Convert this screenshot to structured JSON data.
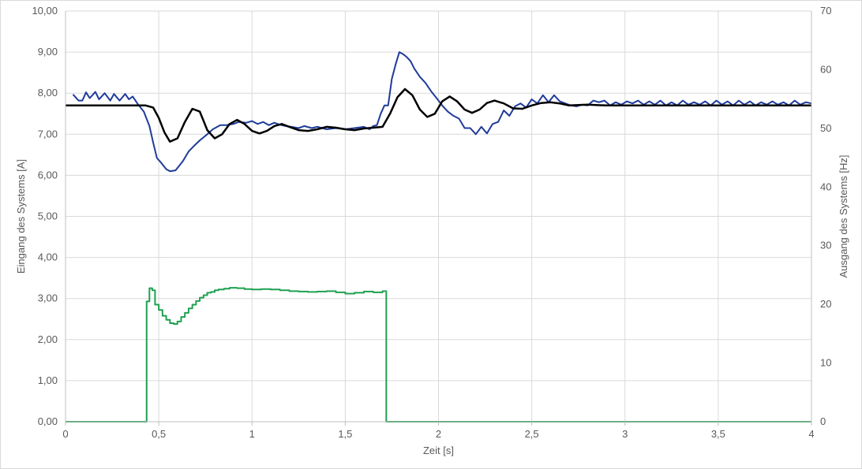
{
  "chart_data": {
    "type": "line",
    "title": "",
    "xlabel": "Zeit [s]",
    "ylabel_left": "Eingang des Systems [A]",
    "ylabel_right": "Ausgang des Systems [Hz]",
    "xlim": [
      0,
      4
    ],
    "ylim_left": [
      0,
      10
    ],
    "ylim_right": [
      0,
      70
    ],
    "grid": true,
    "legend": "none",
    "x_ticks": [
      "0",
      "0,5",
      "1",
      "1,5",
      "2",
      "2,5",
      "3",
      "3,5",
      "4"
    ],
    "y_left_ticks": [
      "0,00",
      "1,00",
      "2,00",
      "3,00",
      "4,00",
      "5,00",
      "6,00",
      "7,00",
      "8,00",
      "9,00",
      "10,00"
    ],
    "y_right_ticks": [
      "0",
      "10",
      "20",
      "30",
      "40",
      "50",
      "60",
      "70"
    ],
    "series": [
      {
        "axis": "left",
        "color": "#1f3b9b",
        "style": "line",
        "x": [
          0.04,
          0.07,
          0.09,
          0.11,
          0.13,
          0.16,
          0.18,
          0.21,
          0.24,
          0.26,
          0.29,
          0.32,
          0.34,
          0.36,
          0.39,
          0.42,
          0.45,
          0.47,
          0.49,
          0.51,
          0.54,
          0.56,
          0.59,
          0.63,
          0.66,
          0.69,
          0.72,
          0.76,
          0.79,
          0.83,
          0.86,
          0.9,
          0.93,
          0.97,
          1.0,
          1.03,
          1.06,
          1.09,
          1.12,
          1.15,
          1.18,
          1.21,
          1.25,
          1.28,
          1.32,
          1.35,
          1.4,
          1.45,
          1.5,
          1.55,
          1.6,
          1.63,
          1.65,
          1.67,
          1.69,
          1.71,
          1.73,
          1.75,
          1.77,
          1.79,
          1.81,
          1.83,
          1.85,
          1.87,
          1.9,
          1.93,
          1.96,
          1.99,
          2.02,
          2.05,
          2.08,
          2.11,
          2.14,
          2.17,
          2.2,
          2.23,
          2.26,
          2.29,
          2.32,
          2.35,
          2.38,
          2.41,
          2.44,
          2.47,
          2.5,
          2.53,
          2.56,
          2.59,
          2.62,
          2.65,
          2.68,
          2.71,
          2.74,
          2.77,
          2.8,
          2.83,
          2.86,
          2.89,
          2.92,
          2.95,
          2.98,
          3.01,
          3.04,
          3.07,
          3.1,
          3.13,
          3.16,
          3.19,
          3.22,
          3.25,
          3.28,
          3.31,
          3.34,
          3.37,
          3.4,
          3.43,
          3.46,
          3.49,
          3.52,
          3.55,
          3.58,
          3.61,
          3.64,
          3.67,
          3.7,
          3.73,
          3.76,
          3.79,
          3.82,
          3.85,
          3.88,
          3.91,
          3.94,
          3.97,
          4.0
        ],
        "y": [
          7.97,
          7.82,
          7.82,
          8.02,
          7.88,
          8.03,
          7.85,
          8.0,
          7.82,
          7.98,
          7.82,
          7.98,
          7.85,
          7.92,
          7.72,
          7.55,
          7.2,
          6.8,
          6.42,
          6.32,
          6.15,
          6.1,
          6.12,
          6.35,
          6.58,
          6.72,
          6.85,
          7.0,
          7.12,
          7.22,
          7.22,
          7.25,
          7.3,
          7.28,
          7.32,
          7.25,
          7.3,
          7.22,
          7.28,
          7.23,
          7.2,
          7.18,
          7.15,
          7.2,
          7.15,
          7.18,
          7.12,
          7.15,
          7.12,
          7.15,
          7.18,
          7.12,
          7.2,
          7.22,
          7.5,
          7.7,
          7.7,
          8.35,
          8.7,
          9.0,
          8.95,
          8.88,
          8.78,
          8.6,
          8.4,
          8.25,
          8.05,
          7.88,
          7.7,
          7.55,
          7.45,
          7.38,
          7.15,
          7.15,
          7.0,
          7.18,
          7.02,
          7.25,
          7.3,
          7.58,
          7.45,
          7.68,
          7.75,
          7.65,
          7.85,
          7.75,
          7.95,
          7.78,
          7.95,
          7.8,
          7.75,
          7.7,
          7.68,
          7.72,
          7.7,
          7.82,
          7.78,
          7.82,
          7.7,
          7.78,
          7.72,
          7.8,
          7.75,
          7.82,
          7.72,
          7.8,
          7.72,
          7.82,
          7.7,
          7.78,
          7.7,
          7.82,
          7.72,
          7.78,
          7.72,
          7.8,
          7.7,
          7.82,
          7.72,
          7.8,
          7.7,
          7.82,
          7.72,
          7.8,
          7.7,
          7.78,
          7.72,
          7.8,
          7.72,
          7.78,
          7.7,
          7.82,
          7.72,
          7.78,
          7.75
        ]
      },
      {
        "axis": "left",
        "color": "#000000",
        "style": "line",
        "x": [
          0.0,
          0.1,
          0.2,
          0.3,
          0.38,
          0.43,
          0.47,
          0.5,
          0.53,
          0.56,
          0.6,
          0.64,
          0.68,
          0.72,
          0.76,
          0.8,
          0.84,
          0.88,
          0.92,
          0.96,
          1.0,
          1.04,
          1.08,
          1.12,
          1.16,
          1.2,
          1.25,
          1.3,
          1.35,
          1.4,
          1.45,
          1.5,
          1.55,
          1.6,
          1.65,
          1.7,
          1.74,
          1.78,
          1.82,
          1.86,
          1.9,
          1.94,
          1.98,
          2.02,
          2.06,
          2.1,
          2.14,
          2.18,
          2.22,
          2.26,
          2.3,
          2.35,
          2.4,
          2.45,
          2.5,
          2.55,
          2.6,
          2.65,
          2.7,
          2.8,
          2.9,
          3.0,
          3.2,
          3.4,
          3.6,
          3.8,
          4.0
        ],
        "y": [
          7.7,
          7.7,
          7.7,
          7.7,
          7.7,
          7.7,
          7.65,
          7.4,
          7.05,
          6.82,
          6.9,
          7.3,
          7.62,
          7.55,
          7.1,
          6.9,
          7.0,
          7.25,
          7.35,
          7.25,
          7.08,
          7.02,
          7.08,
          7.2,
          7.25,
          7.18,
          7.1,
          7.08,
          7.12,
          7.18,
          7.16,
          7.12,
          7.1,
          7.14,
          7.16,
          7.18,
          7.5,
          7.9,
          8.1,
          7.95,
          7.6,
          7.42,
          7.5,
          7.8,
          7.92,
          7.8,
          7.6,
          7.52,
          7.6,
          7.76,
          7.82,
          7.75,
          7.63,
          7.62,
          7.7,
          7.76,
          7.78,
          7.75,
          7.7,
          7.72,
          7.7,
          7.7,
          7.7,
          7.7,
          7.7,
          7.7,
          7.7
        ]
      },
      {
        "axis": "left",
        "color": "#1fa050",
        "style": "step",
        "x": [
          0.0,
          0.435,
          0.45,
          0.465,
          0.48,
          0.5,
          0.52,
          0.54,
          0.56,
          0.58,
          0.6,
          0.62,
          0.64,
          0.66,
          0.68,
          0.7,
          0.72,
          0.74,
          0.76,
          0.78,
          0.8,
          0.82,
          0.85,
          0.88,
          0.92,
          0.96,
          1.0,
          1.05,
          1.1,
          1.15,
          1.2,
          1.25,
          1.3,
          1.35,
          1.4,
          1.45,
          1.5,
          1.55,
          1.6,
          1.65,
          1.7,
          1.72
        ],
        "y": [
          0.0,
          2.93,
          3.25,
          3.2,
          2.85,
          2.72,
          2.58,
          2.48,
          2.4,
          2.38,
          2.44,
          2.55,
          2.65,
          2.76,
          2.85,
          2.94,
          3.02,
          3.08,
          3.14,
          3.16,
          3.2,
          3.22,
          3.24,
          3.26,
          3.25,
          3.23,
          3.22,
          3.23,
          3.22,
          3.2,
          3.18,
          3.17,
          3.16,
          3.17,
          3.18,
          3.15,
          3.12,
          3.14,
          3.17,
          3.15,
          3.18,
          0.0
        ]
      }
    ]
  }
}
